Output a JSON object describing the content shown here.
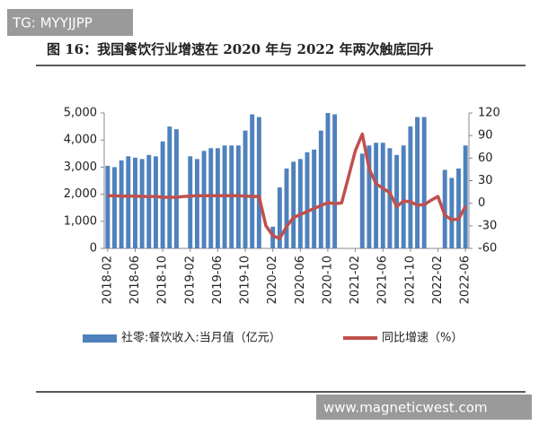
{
  "watermark": "TG: MYYJJPP",
  "footer": "www.magneticwest.com",
  "chart_data": {
    "type": "bar-line",
    "title": "图 16：我国餐饮行业增速在 2020 年与 2022 年两次触底回升",
    "categories": [
      "2018-02",
      null,
      null,
      null,
      "2018-06",
      null,
      null,
      null,
      "2018-10",
      null,
      null,
      null,
      "2019-02",
      null,
      null,
      null,
      "2019-06",
      null,
      null,
      null,
      "2019-10",
      null,
      null,
      null,
      "2020-02",
      null,
      null,
      null,
      "2020-06",
      null,
      null,
      null,
      "2020-10",
      null,
      null,
      null,
      "2021-02",
      null,
      null,
      null,
      "2021-06",
      null,
      null,
      null,
      "2021-10",
      null,
      null,
      null,
      "2022-02",
      null,
      null,
      null,
      "2022-06"
    ],
    "series": [
      {
        "name": "社零:餐饮收入:当月值（亿元）",
        "type": "bar",
        "color": "#4f81bd",
        "values": [
          3050,
          3000,
          3250,
          3400,
          3350,
          3300,
          3450,
          3400,
          3950,
          4500,
          4400,
          null,
          3400,
          3300,
          3600,
          3700,
          3700,
          3800,
          3800,
          3800,
          4350,
          4950,
          4850,
          null,
          800,
          2250,
          2950,
          3200,
          3300,
          3550,
          3650,
          4350,
          5000,
          4950,
          null,
          null,
          null,
          3500,
          3800,
          3900,
          3900,
          3700,
          3450,
          3800,
          4500,
          4850,
          4850,
          null,
          null,
          2900,
          2600,
          2950,
          3800
        ]
      },
      {
        "name": "同比增速（%）",
        "type": "line",
        "axis": "y2",
        "color": "#c0504d",
        "values": [
          10,
          10,
          9.5,
          9.5,
          9.5,
          9,
          9,
          9,
          8,
          8,
          8,
          9,
          9.5,
          10,
          10,
          10,
          10,
          10,
          10,
          10,
          9.5,
          9,
          9,
          -30,
          -43,
          -47,
          -31,
          -19,
          -15,
          -11,
          -7,
          -3,
          0.8,
          -0.6,
          0.4,
          35,
          70,
          92,
          46,
          26,
          20,
          14,
          -4.5,
          3,
          2,
          -2.5,
          -2,
          4,
          9,
          -16,
          -22,
          -21,
          -4
        ]
      }
    ],
    "ylim": [
      0,
      5000
    ],
    "yticks": [
      0,
      {
        "value": 1000,
        "label": "1,000"
      },
      {
        "value": 2000,
        "label": "2,000"
      },
      {
        "value": 3000,
        "label": "3,000"
      },
      {
        "value": 4000,
        "label": "4,000"
      },
      {
        "value": 5000,
        "label": "5,000"
      }
    ],
    "y2lim": [
      -60,
      120
    ],
    "y2ticks": [
      -60,
      -30,
      0,
      30,
      60,
      90,
      120
    ]
  }
}
